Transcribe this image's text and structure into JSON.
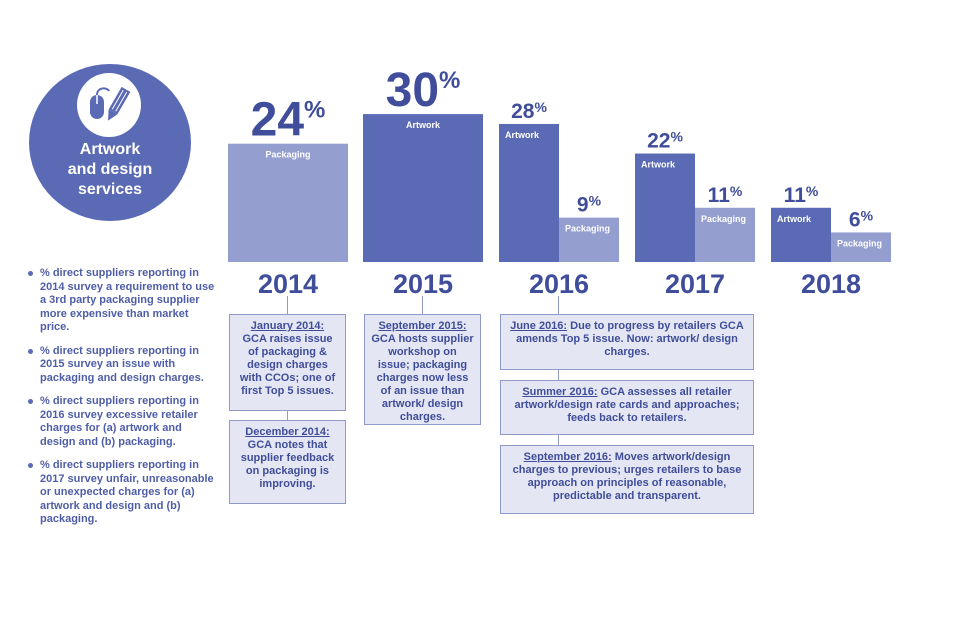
{
  "badge": {
    "title_lines": [
      "Artwork",
      "and design",
      "services"
    ],
    "icon": "mouse-and-pencil-icon"
  },
  "colors": {
    "artwork": "#5a6ab5",
    "packaging": "#949fd0",
    "text": "#3f4d9a",
    "box_fill": "#e4e7f3",
    "box_border": "#8f9ac9"
  },
  "bullets": [
    "% direct suppliers reporting in 2014 survey a requirement to use a 3rd party packaging supplier more expensive than market price.",
    "% direct suppliers reporting in 2015 survey an issue with packaging and design charges.",
    "% direct suppliers reporting in 2016 survey excessive retailer charges for (a) artwork and design and (b) packaging.",
    "% direct suppliers reporting in 2017 survey unfair, unreasonable or unexpected charges for (a) artwork and design and (b) packaging."
  ],
  "chart_data": {
    "type": "bar",
    "categories": [
      "2014",
      "2015",
      "2016",
      "2017",
      "2018"
    ],
    "bars": [
      {
        "year": "2014",
        "label": "Packaging",
        "value": 24,
        "display_number": "24",
        "display_unit": "%",
        "kind": "packaging"
      },
      {
        "year": "2015",
        "label": "Artwork",
        "value": 30,
        "display_number": "30",
        "display_unit": "%",
        "kind": "artwork"
      },
      {
        "year": "2016",
        "label": "Artwork",
        "value": 28,
        "display_number": "28",
        "display_unit": "%",
        "kind": "artwork"
      },
      {
        "year": "2016",
        "label": "Packaging",
        "value": 9,
        "display_number": "9",
        "display_unit": "%",
        "kind": "packaging"
      },
      {
        "year": "2017",
        "label": "Artwork",
        "value": 22,
        "display_number": "22",
        "display_unit": "%",
        "kind": "artwork"
      },
      {
        "year": "2017",
        "label": "Packaging",
        "value": 11,
        "display_number": "11",
        "display_unit": "%",
        "kind": "packaging"
      },
      {
        "year": "2018",
        "label": "Artwork",
        "value": 11,
        "display_number": "11",
        "display_unit": "%",
        "kind": "artwork"
      },
      {
        "year": "2018",
        "label": "Packaging",
        "value": 6,
        "display_number": "6",
        "display_unit": "%",
        "kind": "packaging"
      }
    ],
    "ylim": [
      0,
      30
    ],
    "title": "",
    "xlabel": "",
    "ylabel": "",
    "grid": false,
    "legend": "none"
  },
  "timeline": {
    "col2014": [
      {
        "date": "January 2014:",
        "text": "GCA raises issue of packaging & design charges with CCOs; one of first Top 5 issues."
      },
      {
        "date": "December 2014:",
        "text": "GCA notes that supplier feedback on packaging is improving."
      }
    ],
    "col2015": [
      {
        "date": "September 2015:",
        "text": "GCA hosts supplier workshop on issue; packaging charges now less of an issue than artwork/ design charges."
      }
    ],
    "col2016": [
      {
        "date": "June 2016:",
        "text": "Due to progress by retailers GCA amends Top 5 issue. Now: artwork/ design charges."
      },
      {
        "date": "Summer 2016:",
        "text": "GCA assesses all retailer artwork/design rate cards and approaches; feeds back to retailers."
      },
      {
        "date": "September 2016:",
        "text": "Moves artwork/design charges to previous; urges retailers to base approach on principles of reasonable, predictable and transparent."
      }
    ]
  }
}
